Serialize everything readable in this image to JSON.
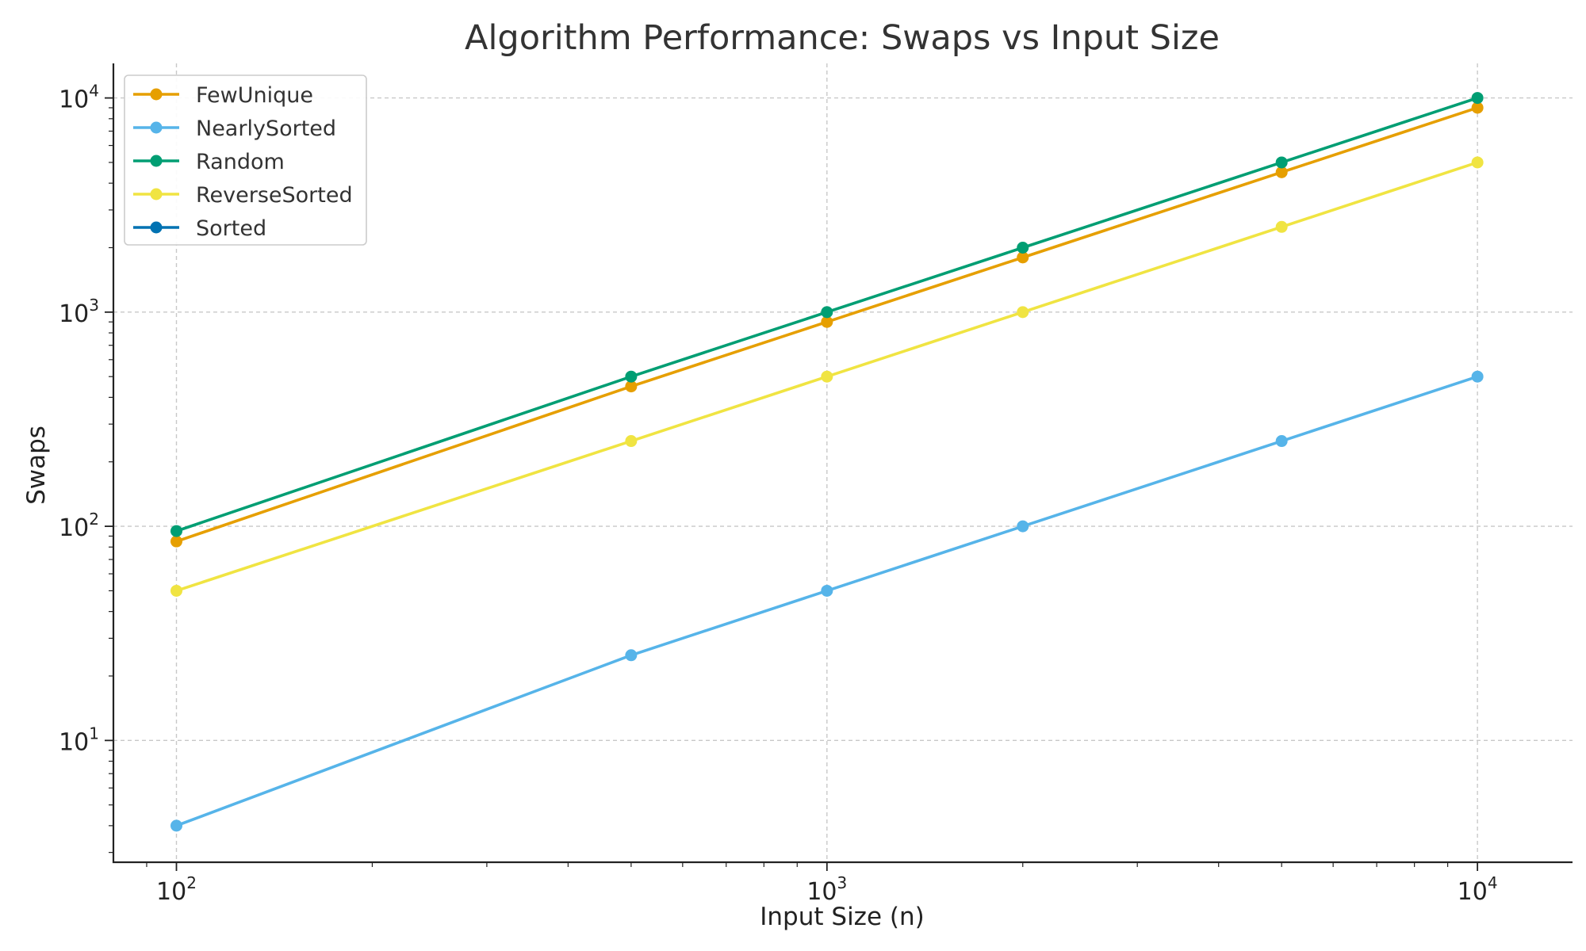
{
  "chart_data": {
    "type": "line",
    "title": "Algorithm Performance: Swaps vs Input Size",
    "xlabel": "Input Size (n)",
    "ylabel": "Swaps",
    "x_scale": "log",
    "y_scale": "log",
    "xlim": [
      80,
      14000
    ],
    "ylim": [
      2.7,
      14500
    ],
    "x_ticks": [
      {
        "value": 100,
        "base": "10",
        "exp": "2"
      },
      {
        "value": 1000,
        "base": "10",
        "exp": "3"
      },
      {
        "value": 10000,
        "base": "10",
        "exp": "4"
      }
    ],
    "y_ticks": [
      {
        "value": 10,
        "base": "10",
        "exp": "1"
      },
      {
        "value": 100,
        "base": "10",
        "exp": "2"
      },
      {
        "value": 1000,
        "base": "10",
        "exp": "3"
      },
      {
        "value": 10000,
        "base": "10",
        "exp": "4"
      }
    ],
    "grid": true,
    "legend_position": "top-left",
    "series": [
      {
        "name": "FewUnique",
        "color": "#E69F00",
        "x": [
          100,
          500,
          1000,
          2000,
          5000,
          10000
        ],
        "y": [
          85,
          450,
          900,
          1800,
          4500,
          9000
        ]
      },
      {
        "name": "NearlySorted",
        "color": "#56B4E9",
        "x": [
          100,
          500,
          1000,
          2000,
          5000,
          10000
        ],
        "y": [
          4,
          25,
          50,
          100,
          250,
          500
        ]
      },
      {
        "name": "Random",
        "color": "#009E73",
        "x": [
          100,
          500,
          1000,
          2000,
          5000,
          10000
        ],
        "y": [
          95,
          500,
          1000,
          2000,
          5000,
          10000
        ]
      },
      {
        "name": "ReverseSorted",
        "color": "#F0E442",
        "x": [
          100,
          500,
          1000,
          2000,
          5000,
          10000
        ],
        "y": [
          50,
          250,
          500,
          1000,
          2500,
          5000
        ]
      },
      {
        "name": "Sorted",
        "color": "#0072B2",
        "x": [],
        "y": []
      }
    ]
  }
}
